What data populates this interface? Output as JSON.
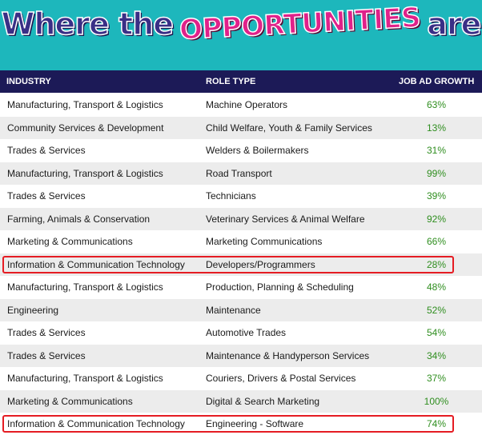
{
  "banner": {
    "part1": "Where the",
    "highlight": "OPPORTUNITIES",
    "part2": "are"
  },
  "table": {
    "headers": {
      "industry": "INDUSTRY",
      "role": "ROLE TYPE",
      "growth": "JOB AD GROWTH"
    },
    "rows": [
      {
        "industry": "Manufacturing, Transport & Logistics",
        "role": "Machine Operators",
        "growth": "63%"
      },
      {
        "industry": "Community Services & Development",
        "role": "Child Welfare, Youth & Family Services",
        "growth": "13%"
      },
      {
        "industry": "Trades & Services",
        "role": "Welders & Boilermakers",
        "growth": "31%"
      },
      {
        "industry": "Manufacturing, Transport & Logistics",
        "role": "Road Transport",
        "growth": "99%"
      },
      {
        "industry": "Trades & Services",
        "role": "Technicians",
        "growth": "39%"
      },
      {
        "industry": "Farming, Animals & Conservation",
        "role": "Veterinary Services & Animal Welfare",
        "growth": "92%"
      },
      {
        "industry": "Marketing & Communications",
        "role": "Marketing Communications",
        "growth": "66%"
      },
      {
        "industry": "Information & Communication Technology",
        "role": "Developers/Programmers",
        "growth": "28%"
      },
      {
        "industry": "Manufacturing, Transport & Logistics",
        "role": "Production, Planning & Scheduling",
        "growth": "48%"
      },
      {
        "industry": "Engineering",
        "role": "Maintenance",
        "growth": "52%"
      },
      {
        "industry": "Trades & Services",
        "role": "Automotive Trades",
        "growth": "54%"
      },
      {
        "industry": "Trades & Services",
        "role": "Maintenance & Handyperson Services",
        "growth": "34%"
      },
      {
        "industry": "Manufacturing, Transport & Logistics",
        "role": "Couriers, Drivers & Postal Services",
        "growth": "37%"
      },
      {
        "industry": "Marketing & Communications",
        "role": "Digital & Search Marketing",
        "growth": "100%"
      },
      {
        "industry": "Information & Communication Technology",
        "role": "Engineering - Software",
        "growth": "74%"
      }
    ]
  },
  "colors": {
    "banner_bg": "#1db7bc",
    "header_bg": "#1c1a57",
    "growth_text": "#2f8e1f",
    "highlight_border": "#e51c23"
  }
}
